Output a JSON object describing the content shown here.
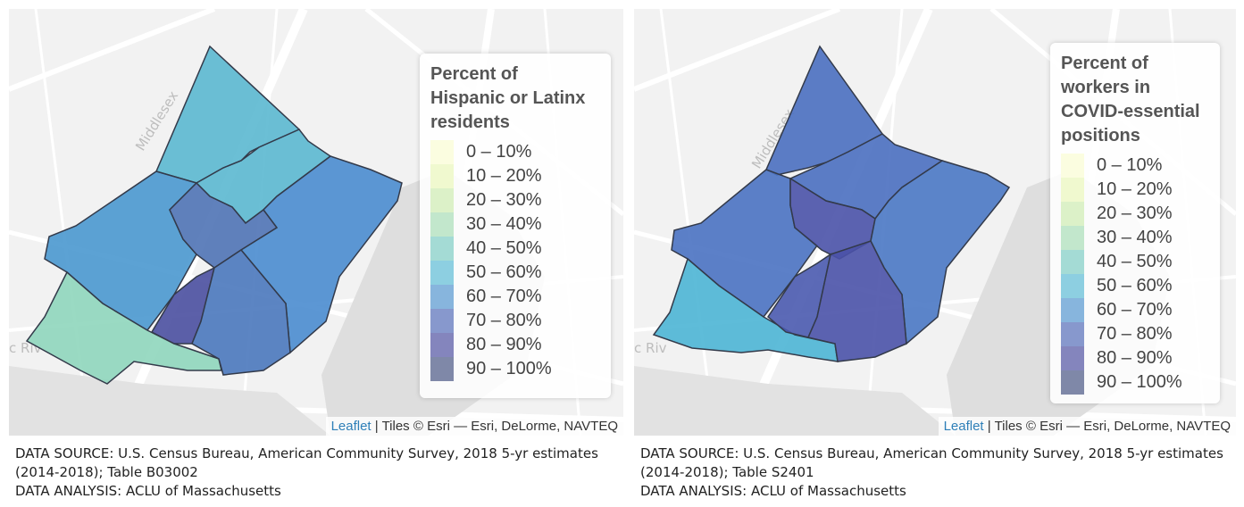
{
  "maps": [
    {
      "legend_title_lines": [
        "Percent of",
        "Hispanic or Latinx",
        "residents"
      ],
      "road_label": "Middlesex",
      "river_label": "c Riv",
      "attribution": {
        "link": "Leaflet",
        "text": " | Tiles © Esri — Esri, DeLorme, NAVTEQ"
      },
      "source_lines": [
        "DATA SOURCE: U.S. Census Bureau, American Community Survey, 2018 5-yr estimates",
        "(2014-2018); Table B03002",
        "DATA ANALYSIS: ACLU of Massachusetts"
      ],
      "region_colors": {
        "north": "#5bb8d0",
        "upper_middle": "#5bb8d0",
        "west": "#4a98cf",
        "center": "#4f73b5",
        "east": "#4a8ccf",
        "southwest": "#8fd6bd",
        "south_small": "#4a4fa0",
        "south": "#4a78bd"
      }
    },
    {
      "legend_title_lines": [
        "Percent of",
        "workers in",
        "COVID-essential",
        "positions"
      ],
      "road_label": "Middlesex",
      "river_label": "c Riv",
      "attribution": {
        "link": "Leaflet",
        "text": " | Tiles © Esri — Esri, DeLorme, NAVTEQ"
      },
      "source_lines": [
        "DATA SOURCE: U.S. Census Bureau, American Community Survey, 2018 5-yr estimates",
        "(2014-2018); Table S2401",
        "DATA ANALYSIS: ACLU of Massachusetts"
      ],
      "region_colors": {
        "north": "#4a6fc0",
        "upper_middle": "#4a6fc0",
        "west": "#4a72c2",
        "center": "#4a52a8",
        "east": "#4a78c4",
        "southwest": "#4cb5d5",
        "south_small": "#4a5aaf",
        "south": "#4a52a8"
      }
    }
  ],
  "legend_bins": [
    {
      "label": "0 – 10%",
      "color": "#fbfde0"
    },
    {
      "label": "10 – 20%",
      "color": "#f0f9cf"
    },
    {
      "label": "20 – 30%",
      "color": "#dcf1c8"
    },
    {
      "label": "30 – 40%",
      "color": "#c2e7cc"
    },
    {
      "label": "40 – 50%",
      "color": "#a4dbd5"
    },
    {
      "label": "50 – 60%",
      "color": "#8dcfe1"
    },
    {
      "label": "60 – 70%",
      "color": "#87b5dd"
    },
    {
      "label": "70 – 80%",
      "color": "#8798cd"
    },
    {
      "label": "80 – 90%",
      "color": "#8485bd"
    },
    {
      "label": "90 – 100%",
      "color": "#7f88a8"
    }
  ]
}
